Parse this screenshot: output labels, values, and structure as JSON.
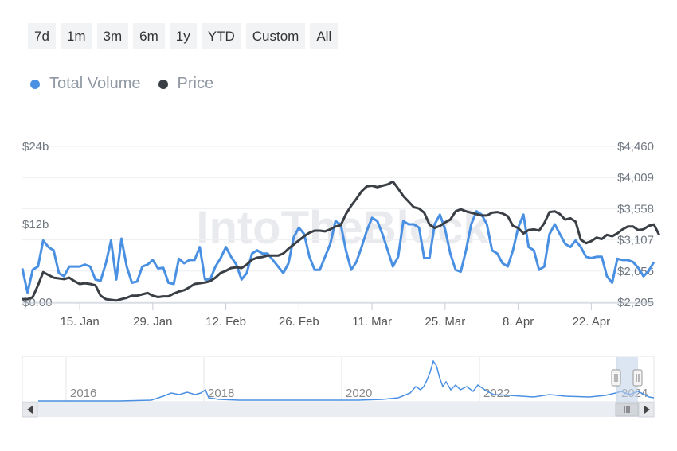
{
  "range_selector": [
    "7d",
    "1m",
    "3m",
    "6m",
    "1y",
    "YTD",
    "Custom",
    "All"
  ],
  "legend": {
    "volume": "Total Volume",
    "price": "Price"
  },
  "watermark": "IntoTheBlock",
  "colors": {
    "volume": "#4a90e2",
    "price": "#3a3f45",
    "navigator_mask": "#c5d3ea"
  },
  "chart_data": {
    "type": "line",
    "left_axis": {
      "ticks": [
        "$0.00",
        "$12b",
        "$24b"
      ],
      "range": [
        0,
        24
      ]
    },
    "right_axis": {
      "ticks": [
        "$2,205",
        "$2,656",
        "$3,107",
        "$3,558",
        "$4,009",
        "$4,460"
      ],
      "range": [
        2205,
        4460
      ]
    },
    "x_axis": {
      "ticks": [
        "15. Jan",
        "29. Jan",
        "12. Feb",
        "26. Feb",
        "11. Mar",
        "25. Mar",
        "8. Apr",
        "22. Apr"
      ]
    },
    "x_start": "2024-01-04",
    "series": [
      {
        "name": "Total Volume",
        "axis": "left",
        "values": [
          5.2,
          1.5,
          5.0,
          5.5,
          9.5,
          8.5,
          8.0,
          4.5,
          4.0,
          5.5,
          5.5,
          5.5,
          5.8,
          5.5,
          3.5,
          3.3,
          6.0,
          9.5,
          3.5,
          9.8,
          5.5,
          3.0,
          3.2,
          5.5,
          5.8,
          6.5,
          5.2,
          5.3,
          3.0,
          2.8,
          6.7,
          6.0,
          6.5,
          6.5,
          8.5,
          3.5,
          3.5,
          5.5,
          6.8,
          8.5,
          7.0,
          5.8,
          3.5,
          4.5,
          7.5,
          8.0,
          7.5,
          7.5,
          6.5,
          5.5,
          4.5,
          6.0,
          10.0,
          11.5,
          10.5,
          7.0,
          5.0,
          5.0,
          7.0,
          9.0,
          12.5,
          12.0,
          8.0,
          5.0,
          6.2,
          8.5,
          11.0,
          13.0,
          12.5,
          10.5,
          8.0,
          5.5,
          7.0,
          12.5,
          12.0,
          12.0,
          11.5,
          6.8,
          6.8,
          12.0,
          13.5,
          11.2,
          7.5,
          5.0,
          4.7,
          8.0,
          12.0,
          14.0,
          13.5,
          12.0,
          8.0,
          7.5,
          6.0,
          5.5,
          8.0,
          11.5,
          13.5,
          8.5,
          8.0,
          5.0,
          5.5,
          10.5,
          12.0,
          10.5,
          9.0,
          8.5,
          9.5,
          8.5,
          7.0,
          6.8,
          7.0,
          7.0,
          4.0,
          3.0,
          6.7,
          6.5,
          6.5,
          6.2,
          5.3,
          4.0,
          4.8,
          6.2
        ]
      },
      {
        "name": "Price",
        "axis": "right",
        "values": [
          2250,
          2250,
          2280,
          2450,
          2640,
          2600,
          2560,
          2550,
          2540,
          2560,
          2510,
          2470,
          2480,
          2470,
          2450,
          2300,
          2250,
          2240,
          2230,
          2250,
          2270,
          2300,
          2300,
          2320,
          2340,
          2300,
          2280,
          2290,
          2290,
          2330,
          2360,
          2380,
          2420,
          2470,
          2480,
          2490,
          2510,
          2560,
          2630,
          2660,
          2700,
          2710,
          2700,
          2750,
          2820,
          2850,
          2860,
          2880,
          2880,
          2880,
          2910,
          2980,
          3040,
          3100,
          3160,
          3210,
          3240,
          3240,
          3230,
          3260,
          3300,
          3320,
          3480,
          3600,
          3700,
          3810,
          3880,
          3890,
          3870,
          3890,
          3910,
          3950,
          3850,
          3740,
          3660,
          3580,
          3560,
          3500,
          3330,
          3280,
          3310,
          3360,
          3400,
          3520,
          3550,
          3520,
          3500,
          3480,
          3460,
          3460,
          3500,
          3510,
          3490,
          3450,
          3310,
          3280,
          3200,
          3250,
          3260,
          3240,
          3350,
          3510,
          3520,
          3480,
          3400,
          3420,
          3370,
          3110,
          3060,
          3090,
          3140,
          3120,
          3180,
          3160,
          3200,
          3260,
          3300,
          3300,
          3250,
          3260,
          3310,
          3330,
          3180
        ]
      }
    ],
    "navigator": {
      "ticks": [
        "2016",
        "2018",
        "2020",
        "2022",
        "2024"
      ],
      "series_name": "Total Volume"
    }
  }
}
